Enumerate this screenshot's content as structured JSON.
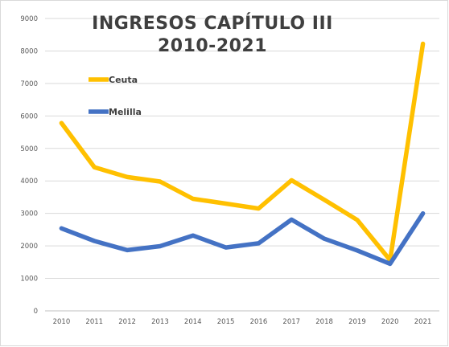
{
  "chart_data": {
    "type": "line",
    "title": "INGRESOS CAPÍTULO III",
    "subtitle": "2010-2021",
    "xlabel": "",
    "ylabel": "",
    "categories": [
      "2010",
      "2011",
      "2012",
      "2013",
      "2014",
      "2015",
      "2016",
      "2017",
      "2018",
      "2019",
      "2020",
      "2021"
    ],
    "ylim": [
      0,
      9000
    ],
    "yticks": [
      0,
      1000,
      2000,
      3000,
      4000,
      5000,
      6000,
      7000,
      8000,
      9000
    ],
    "grid": true,
    "legend_position": "top-left",
    "series": [
      {
        "name": "Ceuta",
        "color": "#FFC000",
        "values": [
          5780,
          4420,
          4120,
          3980,
          3450,
          3300,
          3150,
          4020,
          3420,
          2800,
          1560,
          8220
        ]
      },
      {
        "name": "Melilla",
        "color": "#4472C4",
        "values": [
          2540,
          2150,
          1870,
          1990,
          2320,
          1950,
          2080,
          2810,
          2220,
          1860,
          1450,
          3000
        ]
      }
    ]
  }
}
